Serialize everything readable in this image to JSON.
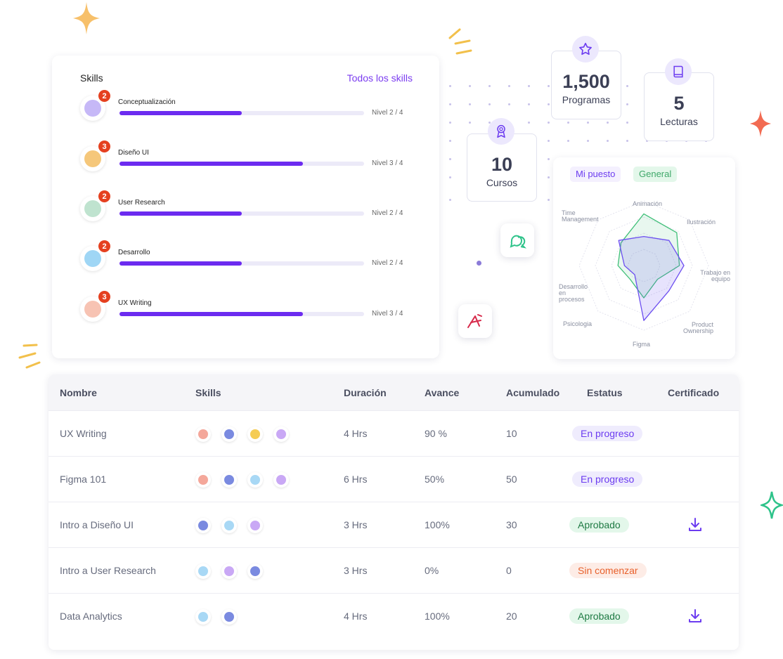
{
  "skills_card": {
    "title": "Skills",
    "link": "Todos los skills",
    "items": [
      {
        "name": "Conceptualización",
        "badge": "2",
        "level": "Nivel 2 / 4",
        "progress": 0.5,
        "color": "#c6b8f7"
      },
      {
        "name": "Diseño UI",
        "badge": "3",
        "level": "Nivel 3 / 4",
        "progress": 0.75,
        "color": "#f5c77a"
      },
      {
        "name": "User Research",
        "badge": "2",
        "level": "Nivel 2 / 4",
        "progress": 0.5,
        "color": "#bfe3cf"
      },
      {
        "name": "Desarrollo",
        "badge": "2",
        "level": "Nivel 2 / 4",
        "progress": 0.5,
        "color": "#9fd6f5"
      },
      {
        "name": "UX Writing",
        "badge": "3",
        "level": "Nivel 3 / 4",
        "progress": 0.75,
        "color": "#f7c3b3"
      }
    ]
  },
  "stats": [
    {
      "value": "1,500",
      "label": "Programas",
      "icon": "star-icon"
    },
    {
      "value": "5",
      "label": "Lecturas",
      "icon": "book-icon"
    },
    {
      "value": "10",
      "label": "Cursos",
      "icon": "award-icon"
    }
  ],
  "radar": {
    "tab_personal": "Mi puesto",
    "tab_general": "General",
    "axes": [
      "Animación",
      "Ilustración",
      "Trabajo en equipo",
      "Product Ownership",
      "Figma",
      "Psicologia",
      "Desarrollo en procesos",
      "Time Management"
    ],
    "series_purple": [
      0.45,
      0.55,
      0.62,
      0.55,
      0.85,
      0.2,
      0.3,
      0.55
    ],
    "series_green": [
      0.8,
      0.72,
      0.55,
      0.3,
      0.5,
      0.3,
      0.4,
      0.5
    ],
    "colors": {
      "purple": "#6c4ef0",
      "green": "#3fbf78"
    }
  },
  "table": {
    "headers": [
      "Nombre",
      "Skills",
      "Duración",
      "Avance",
      "Acumulado",
      "Estatus",
      "Certificado"
    ],
    "rows": [
      {
        "name": "UX Writing",
        "skills": [
          "#f4a79a",
          "#7a8ae0",
          "#f5cc54",
          "#c9a8f5"
        ],
        "duration": "4 Hrs",
        "progress": "90 %",
        "accum": "10",
        "status": "En progreso",
        "status_kind": "progress",
        "cert": false
      },
      {
        "name": "Figma 101",
        "skills": [
          "#f4a79a",
          "#7a8ae0",
          "#a8d8f5",
          "#c9a8f5"
        ],
        "duration": "6 Hrs",
        "progress": "50%",
        "accum": "50",
        "status": "En progreso",
        "status_kind": "progress",
        "cert": false
      },
      {
        "name": "Intro a Diseño UI",
        "skills": [
          "#7a8ae0",
          "#a8d8f5",
          "#c9a8f5"
        ],
        "duration": "3 Hrs",
        "progress": "100%",
        "accum": "30",
        "status": "Aprobado",
        "status_kind": "approved",
        "cert": true
      },
      {
        "name": "Intro a User Research",
        "skills": [
          "#a8d8f5",
          "#c9a8f5",
          "#7a8ae0"
        ],
        "duration": "3 Hrs",
        "progress": "0%",
        "accum": "0",
        "status": "Sin comenzar",
        "status_kind": "notstarted",
        "cert": false
      },
      {
        "name": "Data Analytics",
        "skills": [
          "#a8d8f5",
          "#7a8ae0"
        ],
        "duration": "4 Hrs",
        "progress": "100%",
        "accum": "20",
        "status": "Aprobado",
        "status_kind": "approved",
        "cert": true
      }
    ]
  },
  "status_colors": {
    "progress": {
      "bg": "#efecfd",
      "fg": "#6c3cf0"
    },
    "approved": {
      "bg": "#e3f7ea",
      "fg": "#1e7a43"
    },
    "notstarted": {
      "bg": "#fdece6",
      "fg": "#e8612c"
    }
  }
}
